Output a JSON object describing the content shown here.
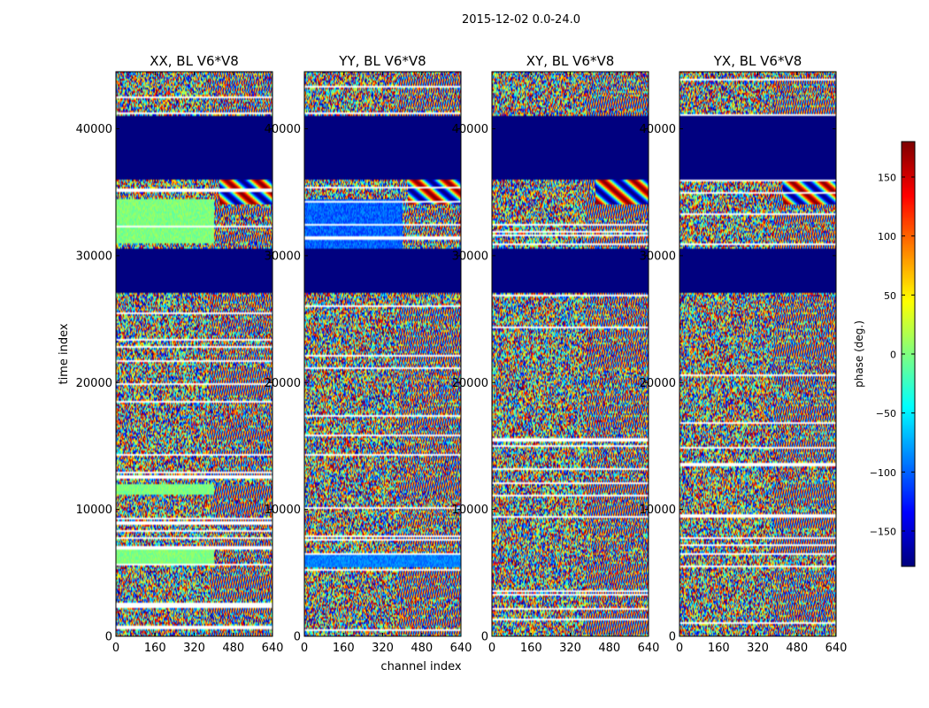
{
  "figure": {
    "suptitle": "2015-12-02 0.0-24.0",
    "xlabel": "channel index",
    "ylabel": "time index"
  },
  "colorbar": {
    "label": "phase (deg.)",
    "range": [
      -180,
      180
    ],
    "ticks": [
      150,
      100,
      50,
      0,
      -50,
      -100,
      -150
    ],
    "tick_labels": [
      "150",
      "100",
      "50",
      "0",
      "−50",
      "−100",
      "−150"
    ],
    "colormap": "jet",
    "gap_color": "#00007f"
  },
  "chart_data": [
    {
      "type": "heatmap",
      "title": "XX, BL V6*V8",
      "x_ticks": [
        0,
        160,
        320,
        480,
        640
      ],
      "y_ticks": [
        0,
        10000,
        20000,
        30000,
        40000
      ],
      "xlim": [
        0,
        640
      ],
      "ylim": [
        0,
        44500
      ],
      "z_range": [
        -180,
        180
      ],
      "missing_time_ranges": [
        [
          27000,
          30600
        ],
        [
          36000,
          41000
        ]
      ],
      "variant": "xx"
    },
    {
      "type": "heatmap",
      "title": "YY, BL V6*V8",
      "x_ticks": [
        0,
        160,
        320,
        480,
        640
      ],
      "y_ticks": [
        0,
        10000,
        20000,
        30000,
        40000
      ],
      "xlim": [
        0,
        640
      ],
      "ylim": [
        0,
        44500
      ],
      "z_range": [
        -180,
        180
      ],
      "missing_time_ranges": [
        [
          27000,
          30600
        ],
        [
          36000,
          41000
        ]
      ],
      "variant": "yy"
    },
    {
      "type": "heatmap",
      "title": "XY, BL V6*V8",
      "x_ticks": [
        0,
        160,
        320,
        480,
        640
      ],
      "y_ticks": [
        0,
        10000,
        20000,
        30000,
        40000
      ],
      "xlim": [
        0,
        640
      ],
      "ylim": [
        0,
        44500
      ],
      "z_range": [
        -180,
        180
      ],
      "missing_time_ranges": [
        [
          27000,
          30600
        ],
        [
          36000,
          41000
        ]
      ],
      "variant": "xy"
    },
    {
      "type": "heatmap",
      "title": "YX, BL V6*V8",
      "x_ticks": [
        0,
        160,
        320,
        480,
        640
      ],
      "y_ticks": [
        0,
        10000,
        20000,
        30000,
        40000
      ],
      "xlim": [
        0,
        640
      ],
      "ylim": [
        0,
        44500
      ],
      "z_range": [
        -180,
        180
      ],
      "missing_time_ranges": [
        [
          27000,
          30600
        ],
        [
          36000,
          41000
        ]
      ],
      "variant": "yx"
    }
  ]
}
